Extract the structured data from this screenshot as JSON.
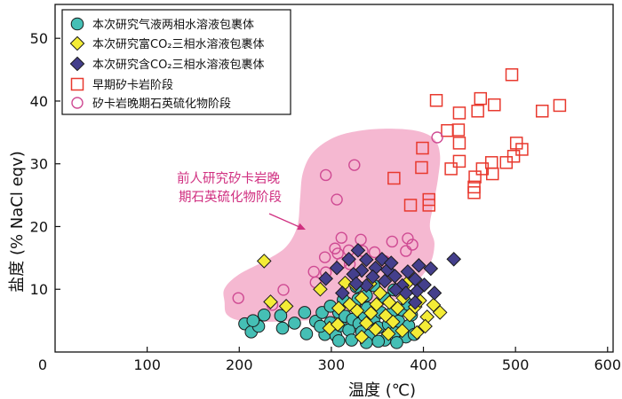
{
  "chart_data": {
    "type": "scatter",
    "xlabel": "温度 (℃)",
    "ylabel": "盐度 (% NaCl eqv)",
    "xlim": [
      0,
      606
    ],
    "ylim": [
      0,
      55.4
    ],
    "xticks": [
      0,
      100,
      200,
      300,
      400,
      500,
      600
    ],
    "yticks": [
      10,
      20,
      30,
      40,
      50
    ],
    "grid": false,
    "legend": "top-left",
    "series": [
      {
        "name": "本次研究气液两相水溶液包裹体",
        "marker": "circle",
        "fill": "#45bfb5",
        "stroke": "#1a1a1a",
        "points": [
          [
            206,
            4.5
          ],
          [
            213,
            3.2
          ],
          [
            221,
            4.1
          ],
          [
            227,
            5.9
          ],
          [
            215,
            5.0
          ],
          [
            245,
            5.8
          ],
          [
            247,
            3.8
          ],
          [
            260,
            4.6
          ],
          [
            271,
            6.3
          ],
          [
            273,
            2.9
          ],
          [
            283,
            4.9
          ],
          [
            290,
            6.3
          ],
          [
            293,
            2.8
          ],
          [
            299,
            4.7
          ],
          [
            305,
            2.6
          ],
          [
            308,
            6.3
          ],
          [
            310,
            4.2
          ],
          [
            315,
            5.7
          ],
          [
            319,
            3.5
          ],
          [
            323,
            5.2
          ],
          [
            325,
            7.3
          ],
          [
            330,
            4.5
          ],
          [
            333,
            3.2
          ],
          [
            336,
            5.8
          ],
          [
            339,
            7.0
          ],
          [
            342,
            2.7
          ],
          [
            346,
            5.1
          ],
          [
            351,
            3.9
          ],
          [
            354,
            6.3
          ],
          [
            358,
            1.9
          ],
          [
            362,
            4.4
          ],
          [
            365,
            6.1
          ],
          [
            369,
            3.1
          ],
          [
            373,
            4.9
          ],
          [
            377,
            6.7
          ],
          [
            381,
            2.4
          ],
          [
            384,
            4.2
          ],
          [
            387,
            5.9
          ],
          [
            390,
            2.8
          ],
          [
            299,
            7.3
          ],
          [
            313,
            8.3
          ],
          [
            327,
            10.4
          ],
          [
            338,
            9.0
          ],
          [
            346,
            10.6
          ],
          [
            358,
            8.6
          ],
          [
            368,
            9.9
          ],
          [
            351,
            1.7
          ],
          [
            338,
            1.5
          ],
          [
            322,
            1.9
          ],
          [
            308,
            1.8
          ],
          [
            288,
            4.1
          ],
          [
            329,
            8.4
          ],
          [
            371,
            1.5
          ],
          [
            383,
            7.6
          ]
        ]
      },
      {
        "name": "本次研究富CO₂三相水溶液包裹体",
        "marker": "diamond",
        "fill": "#f4ec36",
        "stroke": "#1a1a1a",
        "points": [
          [
            227,
            14.5
          ],
          [
            234,
            8.0
          ],
          [
            251,
            7.3
          ],
          [
            288,
            10.0
          ],
          [
            298,
            3.8
          ],
          [
            307,
            4.4
          ],
          [
            315,
            11.0
          ],
          [
            320,
            7.6
          ],
          [
            328,
            6.6
          ],
          [
            333,
            8.6
          ],
          [
            338,
            4.6
          ],
          [
            343,
            6.2
          ],
          [
            349,
            7.6
          ],
          [
            353,
            9.4
          ],
          [
            359,
            5.8
          ],
          [
            363,
            7.9
          ],
          [
            367,
            4.8
          ],
          [
            372,
            7.0
          ],
          [
            378,
            8.6
          ],
          [
            385,
            5.9
          ],
          [
            391,
            7.2
          ],
          [
            396,
            8.2
          ],
          [
            404,
            5.6
          ],
          [
            411,
            7.5
          ],
          [
            418,
            6.3
          ],
          [
            402,
            4.1
          ],
          [
            393,
            3.1
          ],
          [
            377,
            3.4
          ],
          [
            362,
            2.9
          ],
          [
            348,
            3.6
          ],
          [
            333,
            2.4
          ],
          [
            326,
            10.7
          ],
          [
            342,
            10.9
          ],
          [
            308,
            7.0
          ],
          [
            383,
            11.1
          ]
        ]
      },
      {
        "name": "本次研究含CO₂三相水溶液包裹体",
        "marker": "diamond",
        "fill": "#443f8c",
        "stroke": "#1a1a1a",
        "points": [
          [
            294,
            11.7
          ],
          [
            319,
            14.8
          ],
          [
            329,
            16.2
          ],
          [
            338,
            14.7
          ],
          [
            348,
            13.4
          ],
          [
            355,
            14.8
          ],
          [
            361,
            13.1
          ],
          [
            365,
            14.2
          ],
          [
            369,
            12.1
          ],
          [
            377,
            10.6
          ],
          [
            383,
            12.8
          ],
          [
            391,
            11.6
          ],
          [
            395,
            13.8
          ],
          [
            408,
            13.3
          ],
          [
            393,
            9.7
          ],
          [
            401,
            10.7
          ],
          [
            381,
            9.4
          ],
          [
            370,
            9.9
          ],
          [
            358,
            11.3
          ],
          [
            345,
            12.0
          ],
          [
            333,
            13.0
          ],
          [
            324,
            12.4
          ],
          [
            312,
            9.4
          ],
          [
            338,
            10.6
          ],
          [
            433,
            14.8
          ],
          [
            391,
            7.9
          ],
          [
            412,
            9.4
          ],
          [
            327,
            10.9
          ],
          [
            306,
            13.4
          ]
        ]
      },
      {
        "name": "早期矽卡岩阶段",
        "marker": "open-square",
        "fill": "none",
        "stroke": "#e8392e",
        "points": [
          [
            496,
            44.2
          ],
          [
            414,
            40.1
          ],
          [
            462,
            40.4
          ],
          [
            477,
            39.4
          ],
          [
            439,
            38.1
          ],
          [
            459,
            38.4
          ],
          [
            529,
            38.4
          ],
          [
            548,
            39.3
          ],
          [
            426,
            35.3
          ],
          [
            438,
            35.4
          ],
          [
            399,
            32.5
          ],
          [
            439,
            33.3
          ],
          [
            501,
            33.3
          ],
          [
            507,
            32.3
          ],
          [
            498,
            31.2
          ],
          [
            474,
            30.2
          ],
          [
            490,
            30.2
          ],
          [
            439,
            30.4
          ],
          [
            398,
            29.4
          ],
          [
            430,
            29.2
          ],
          [
            464,
            29.2
          ],
          [
            475,
            28.4
          ],
          [
            456,
            27.9
          ],
          [
            368,
            27.7
          ],
          [
            455,
            26.3
          ],
          [
            455,
            25.4
          ],
          [
            406,
            24.3
          ],
          [
            406,
            23.4
          ],
          [
            386,
            23.4
          ]
        ]
      },
      {
        "name": "矽卡岩晚期石英硫化物阶段",
        "marker": "open-circle",
        "fill": "none",
        "stroke": "#cf4b93",
        "points": [
          [
            294,
            28.2
          ],
          [
            325,
            29.8
          ],
          [
            306,
            24.3
          ],
          [
            415,
            34.2
          ],
          [
            199,
            8.6
          ],
          [
            248,
            9.9
          ],
          [
            236,
            7.5
          ],
          [
            281,
            12.8
          ],
          [
            283,
            11.1
          ],
          [
            293,
            15.1
          ],
          [
            311,
            18.2
          ],
          [
            304,
            16.5
          ],
          [
            319,
            16.2
          ],
          [
            332,
            17.9
          ],
          [
            334,
            16.1
          ],
          [
            311,
            14.2
          ],
          [
            294,
            12.7
          ],
          [
            366,
            17.6
          ],
          [
            383,
            18.1
          ],
          [
            388,
            17.1
          ],
          [
            381,
            16.1
          ],
          [
            347,
            15.9
          ],
          [
            358,
            14.5
          ],
          [
            320,
            14.0
          ],
          [
            307,
            15.7
          ]
        ]
      }
    ],
    "regions": [
      {
        "label": [
          "前人研究矽卡岩晚",
          "期石英硫化物阶段"
        ],
        "color": "#f5b8d1",
        "label_color": "#d02f80",
        "points": [
          [
            184,
            10.1
          ],
          [
            199,
            12.3
          ],
          [
            230,
            14.7
          ],
          [
            251,
            16.8
          ],
          [
            263,
            20.0
          ],
          [
            266,
            24.3
          ],
          [
            269,
            28.5
          ],
          [
            280,
            31.8
          ],
          [
            303,
            34.2
          ],
          [
            332,
            35.3
          ],
          [
            365,
            35.6
          ],
          [
            394,
            35.2
          ],
          [
            412,
            33.9
          ],
          [
            418,
            31.4
          ],
          [
            416,
            27.8
          ],
          [
            411,
            23.6
          ],
          [
            407,
            20.0
          ],
          [
            412,
            17.2
          ],
          [
            406,
            13.7
          ],
          [
            385,
            10.1
          ],
          [
            356,
            7.3
          ],
          [
            307,
            5.5
          ],
          [
            250,
            4.9
          ],
          [
            206,
            4.9
          ],
          [
            187,
            5.9
          ],
          [
            184,
            8.0
          ]
        ]
      }
    ]
  }
}
